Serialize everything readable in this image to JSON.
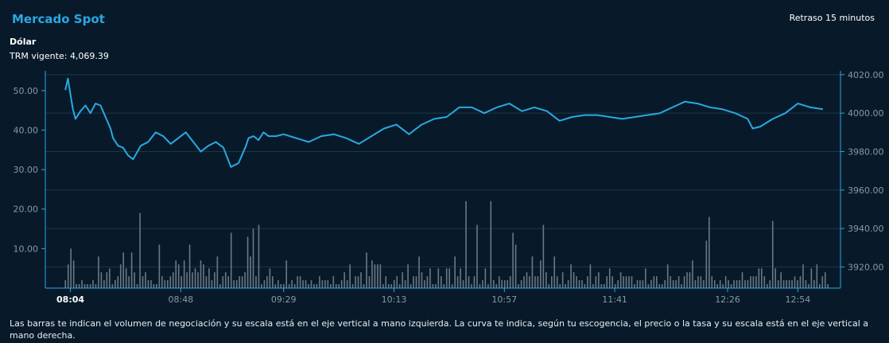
{
  "header": {
    "title": "Mercado Spot",
    "delay": "Retraso 15 minutos",
    "currency": "Dólar",
    "trm_label": "TRM vigente:",
    "trm_value": "4,069.39"
  },
  "note": "Las barras te indican el volumen de negociación y su escala está en el eje vertical a mano izquierda. La curva te indica, según tu escogencia, el precio o la tasa y su escala está en el eje vertical a mano derecha.",
  "colors": {
    "accent": "#2aa8e0",
    "line": "#2aa8e0",
    "bars": "#6b7785",
    "grid": "#1e3647",
    "axis": "#2aa8e0",
    "tick_text": "#8a97a5"
  },
  "chart_data": {
    "type": "line+bar",
    "x_tick_labels": [
      "08:04",
      "08:48",
      "09:29",
      "10:13",
      "10:57",
      "11:41",
      "12:26",
      "12:54"
    ],
    "x_tick_minutes": [
      0,
      44,
      85,
      129,
      173,
      217,
      262,
      290
    ],
    "x_range_minutes": [
      -10,
      307
    ],
    "left_axis": {
      "label": "",
      "range": [
        0,
        55
      ],
      "ticks": [
        "10.00",
        "20.00",
        "30.00",
        "40.00",
        "50.00"
      ]
    },
    "right_axis": {
      "label": "",
      "range": [
        3909,
        4022
      ],
      "ticks": [
        "3920.00",
        "3940.00",
        "3960.00",
        "3980.00",
        "4000.00",
        "4020.00"
      ]
    },
    "price_series": {
      "minutes": [
        -2,
        -1,
        0,
        1,
        2,
        4,
        6,
        8,
        10,
        12,
        14,
        16,
        17,
        19,
        21,
        23,
        25,
        28,
        31,
        34,
        37,
        40,
        43,
        46,
        49,
        52,
        55,
        58,
        61,
        64,
        67,
        70,
        71,
        73,
        75,
        77,
        79,
        82,
        85,
        90,
        95,
        100,
        105,
        110,
        115,
        120,
        125,
        130,
        135,
        140,
        145,
        150,
        155,
        160,
        165,
        170,
        175,
        180,
        185,
        190,
        195,
        200,
        205,
        210,
        215,
        220,
        225,
        230,
        235,
        240,
        245,
        250,
        255,
        260,
        265,
        270,
        272,
        275,
        280,
        285,
        290,
        295,
        300
      ],
      "values": [
        4012,
        4018,
        4010,
        4002,
        3997,
        4001,
        4004,
        4000,
        4005,
        4004,
        3998,
        3992,
        3987,
        3983,
        3982,
        3978,
        3976,
        3983,
        3985,
        3990,
        3988,
        3984,
        3987,
        3990,
        3985,
        3980,
        3983,
        3985,
        3982,
        3972,
        3974,
        3983,
        3987,
        3988,
        3986,
        3990,
        3988,
        3988,
        3989,
        3987,
        3985,
        3988,
        3989,
        3987,
        3984,
        3988,
        3992,
        3994,
        3989,
        3994,
        3997,
        3998,
        4003,
        4003,
        4000,
        4003,
        4005,
        4001,
        4003,
        4001,
        3996,
        3998,
        3999,
        3999,
        3998,
        3997,
        3998,
        3999,
        4000,
        4003,
        4006,
        4005,
        4003,
        4002,
        4000,
        3997,
        3992,
        3993,
        3997,
        4000,
        4005,
        4003,
        4002
      ]
    },
    "volume_bar_heights": [
      2,
      6,
      10,
      7,
      1,
      1,
      2,
      1,
      1,
      1,
      2,
      1,
      8,
      4,
      2,
      4,
      5,
      1,
      2,
      3,
      6,
      9,
      5,
      3,
      9,
      4,
      1,
      19,
      3,
      4,
      2,
      2,
      1,
      1,
      11,
      3,
      2,
      2,
      3,
      4,
      7,
      6,
      3,
      7,
      4,
      11,
      4,
      5,
      4,
      7,
      6,
      3,
      5,
      2,
      4,
      8,
      1,
      3,
      4,
      3,
      14,
      2,
      2,
      3,
      3,
      4,
      13,
      8,
      15,
      3,
      16,
      1,
      2,
      3,
      5,
      3,
      1,
      2,
      1,
      1,
      7,
      1,
      2,
      1,
      3,
      3,
      2,
      2,
      1,
      2,
      1,
      1,
      3,
      2,
      2,
      2,
      1,
      3,
      1,
      1,
      2,
      4,
      2,
      6,
      1,
      3,
      3,
      4,
      1,
      9,
      3,
      7,
      6,
      6,
      6,
      1,
      3,
      1,
      1,
      2,
      3,
      1,
      4,
      2,
      6,
      1,
      3,
      3,
      8,
      4,
      2,
      3,
      5,
      1,
      1,
      5,
      3,
      1,
      5,
      5,
      1,
      8,
      3,
      5,
      2,
      22,
      3,
      1,
      3,
      16,
      1,
      2,
      5,
      1,
      22,
      2,
      1,
      3,
      2,
      2,
      2,
      3,
      14,
      11,
      1,
      2,
      3,
      4,
      3,
      8,
      3,
      3,
      7,
      16,
      4,
      1,
      3,
      8,
      3,
      1,
      4,
      1,
      2,
      6,
      4,
      3,
      2,
      2,
      1,
      3,
      6,
      1,
      3,
      4,
      1,
      1,
      3,
      5,
      3,
      1,
      2,
      4,
      3,
      3,
      3,
      3,
      1,
      2,
      2,
      2,
      5,
      1,
      2,
      3,
      3,
      1,
      1,
      2,
      6,
      3,
      2,
      2,
      3,
      1,
      3,
      4,
      4,
      7,
      2,
      3,
      3,
      2,
      12,
      18,
      3,
      2,
      1,
      2,
      1,
      3,
      2,
      1,
      2,
      2,
      2,
      4,
      2,
      2,
      3,
      3,
      3,
      5,
      5,
      3,
      1,
      2,
      17,
      5,
      2,
      4,
      2,
      2,
      2,
      2,
      3,
      2,
      3,
      6,
      2,
      1,
      5,
      2,
      6,
      1,
      3,
      4,
      1
    ]
  }
}
